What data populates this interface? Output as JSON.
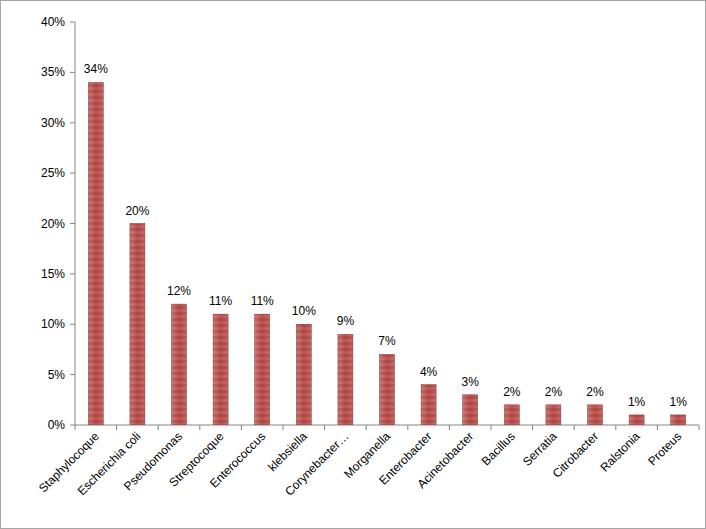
{
  "chart_data": {
    "type": "bar",
    "categories": [
      "Staphylocoque",
      "Escherichia coli",
      "Pseudomonas",
      "Streptocoque",
      "Enterococcus",
      "klebsiella",
      "Corynebacter…",
      "Morganella",
      "Enterobacter",
      "Acinetobacter",
      "Bacillus",
      "Serratia",
      "Citrobacter",
      "Ralstonia",
      "Proteus"
    ],
    "values": [
      34,
      20,
      12,
      11,
      11,
      10,
      9,
      7,
      4,
      3,
      2,
      2,
      2,
      1,
      1
    ],
    "value_labels": [
      "34%",
      "20%",
      "12%",
      "11%",
      "11%",
      "10%",
      "9%",
      "7%",
      "4%",
      "3%",
      "2%",
      "2%",
      "2%",
      "1%",
      "1%"
    ],
    "color": "#c0504d",
    "ylim": [
      0,
      40
    ],
    "yticks": [
      {
        "value": 0,
        "label": "0%"
      },
      {
        "value": 5,
        "label": "5%"
      },
      {
        "value": 10,
        "label": "10%"
      },
      {
        "value": 15,
        "label": "15%"
      },
      {
        "value": 20,
        "label": "20%"
      },
      {
        "value": 25,
        "label": "25%"
      },
      {
        "value": 30,
        "label": "30%"
      },
      {
        "value": 35,
        "label": "35%"
      },
      {
        "value": 40,
        "label": "40%"
      }
    ],
    "data_labels": true,
    "grid": false
  }
}
